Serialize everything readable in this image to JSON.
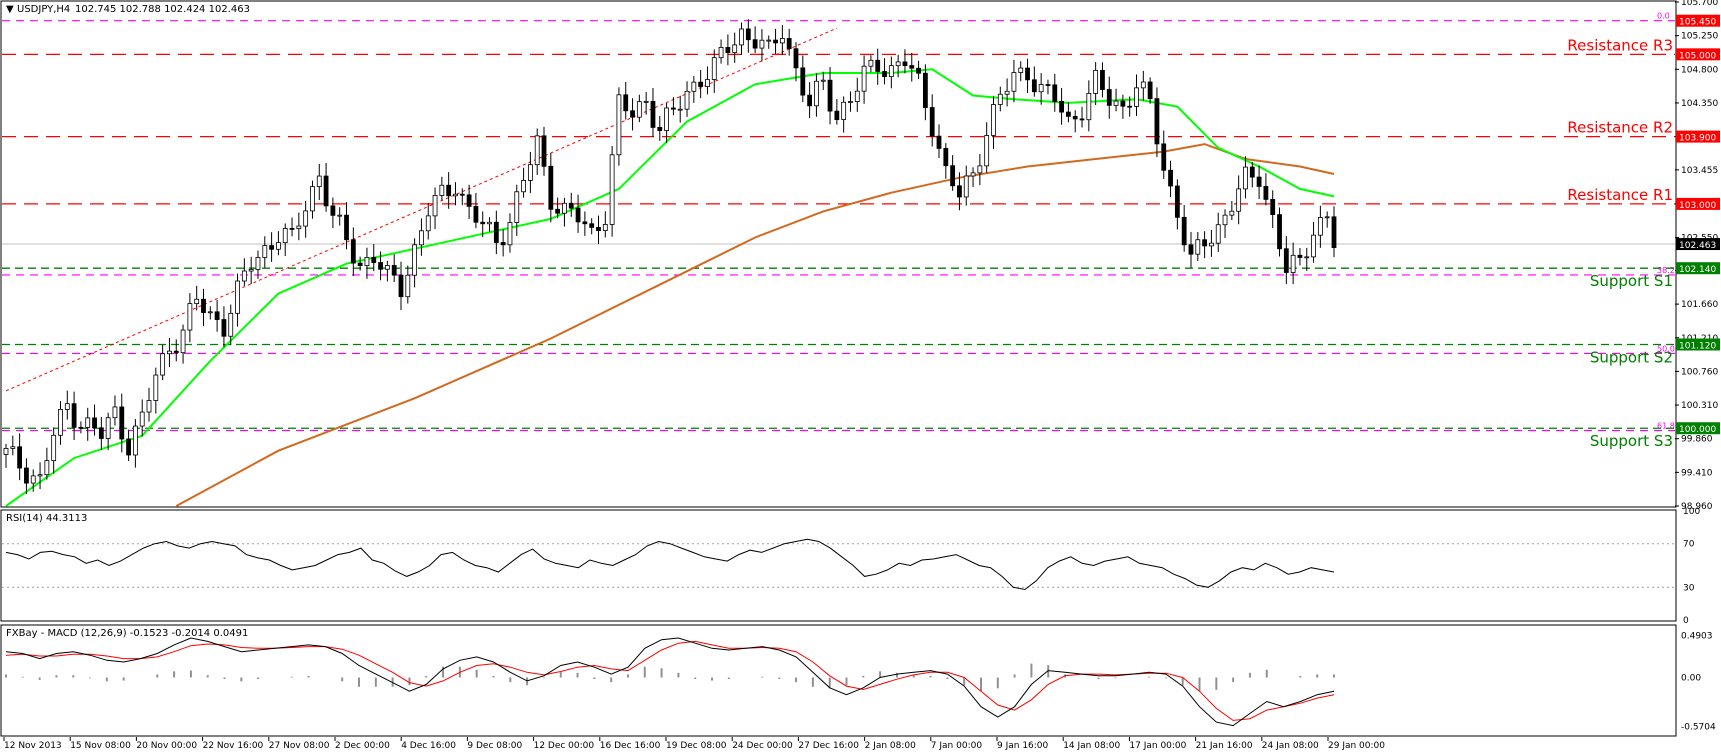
{
  "header": {
    "symbol_label": "USDJPY,H4",
    "ohlc": "102.745 102.788 102.424 102.463",
    "rsi_label": "RSI(14) 44.3113",
    "macd_label": "FXBay - MACD (12,26,9) -0.1523 -0.2014 0.0491"
  },
  "colors": {
    "resistance": "#ff0000",
    "support": "#008000",
    "fib": "#ff00ff",
    "ma_fast": "#00ff00",
    "ma_slow": "#d2691e",
    "trend": "#ff0000",
    "rsi": "#000000",
    "macd": "#000000",
    "signal": "#ff0000"
  },
  "chart_data": [
    {
      "type": "candlestick",
      "symbol": "USDJPY",
      "timeframe": "H4",
      "ylim": [
        98.96,
        105.7
      ],
      "y_ticks": [
        "105.700",
        "105.250",
        "104.800",
        "104.350",
        "103.900",
        "103.455",
        "103.000",
        "102.550",
        "102.110",
        "101.660",
        "101.210",
        "100.760",
        "100.310",
        "99.860",
        "99.410",
        "98.960"
      ],
      "x_labels": [
        "12 Nov 2013",
        "15 Nov 08:00",
        "20 Nov 00:00",
        "22 Nov 16:00",
        "27 Nov 08:00",
        "2 Dec 00:00",
        "4 Dec 16:00",
        "9 Dec 08:00",
        "12 Dec 00:00",
        "16 Dec 16:00",
        "19 Dec 08:00",
        "24 Dec 00:00",
        "27 Dec 16:00",
        "2 Jan 08:00",
        "7 Jan 00:00",
        "9 Jan 16:00",
        "14 Jan 08:00",
        "17 Jan 00:00",
        "21 Jan 16:00",
        "24 Jan 08:00",
        "29 Jan 00:00"
      ],
      "close_path": [
        [
          0,
          99.65
        ],
        [
          3,
          99.45
        ],
        [
          5,
          99.3
        ],
        [
          7,
          99.9
        ],
        [
          9,
          100.3
        ],
        [
          11,
          100.1
        ],
        [
          14,
          99.9
        ],
        [
          16,
          100.2
        ],
        [
          18,
          99.8
        ],
        [
          20,
          100.1
        ],
        [
          22,
          100.7
        ],
        [
          24,
          101.1
        ],
        [
          26,
          101.3
        ],
        [
          28,
          101.7
        ],
        [
          30,
          101.5
        ],
        [
          32,
          101.4
        ],
        [
          34,
          101.8
        ],
        [
          36,
          102.2
        ],
        [
          38,
          102.4
        ],
        [
          40,
          102.6
        ],
        [
          42,
          102.5
        ],
        [
          44,
          103.0
        ],
        [
          46,
          103.4
        ],
        [
          48,
          102.8
        ],
        [
          50,
          102.5
        ],
        [
          52,
          102.2
        ],
        [
          54,
          102.3
        ],
        [
          56,
          102.0
        ],
        [
          58,
          101.9
        ],
        [
          60,
          102.4
        ],
        [
          62,
          102.9
        ],
        [
          64,
          103.1
        ],
        [
          66,
          103.3
        ],
        [
          68,
          102.9
        ],
        [
          70,
          102.7
        ],
        [
          72,
          102.5
        ],
        [
          74,
          102.8
        ],
        [
          76,
          103.3
        ],
        [
          78,
          103.8
        ],
        [
          80,
          103.1
        ],
        [
          82,
          102.9
        ],
        [
          84,
          102.8
        ],
        [
          86,
          102.6
        ],
        [
          88,
          102.9
        ],
        [
          90,
          104.3
        ],
        [
          92,
          104.2
        ],
        [
          94,
          104.4
        ],
        [
          96,
          104.0
        ],
        [
          98,
          104.2
        ],
        [
          100,
          104.5
        ],
        [
          102,
          104.7
        ],
        [
          104,
          104.8
        ],
        [
          106,
          105.1
        ],
        [
          108,
          105.3
        ],
        [
          110,
          105.2
        ],
        [
          112,
          105.0
        ],
        [
          114,
          105.35
        ],
        [
          116,
          104.8
        ],
        [
          118,
          104.3
        ],
        [
          120,
          104.6
        ],
        [
          122,
          104.2
        ],
        [
          124,
          104.4
        ],
        [
          126,
          104.7
        ],
        [
          128,
          104.9
        ],
        [
          130,
          104.8
        ],
        [
          132,
          104.9
        ],
        [
          134,
          104.6
        ],
        [
          136,
          104.1
        ],
        [
          138,
          103.4
        ],
        [
          140,
          103.1
        ],
        [
          142,
          103.4
        ],
        [
          144,
          104.0
        ],
        [
          146,
          104.4
        ],
        [
          148,
          104.7
        ],
        [
          150,
          104.8
        ],
        [
          152,
          104.5
        ],
        [
          154,
          104.4
        ],
        [
          156,
          104.1
        ],
        [
          158,
          104.3
        ],
        [
          160,
          104.6
        ],
        [
          162,
          104.4
        ],
        [
          164,
          104.3
        ],
        [
          166,
          104.6
        ],
        [
          168,
          104.3
        ],
        [
          170,
          103.5
        ],
        [
          172,
          102.9
        ],
        [
          174,
          102.2
        ],
        [
          176,
          102.5
        ],
        [
          178,
          102.7
        ],
        [
          180,
          103.0
        ],
        [
          182,
          103.3
        ],
        [
          184,
          103.4
        ],
        [
          186,
          102.8
        ],
        [
          188,
          102.1
        ],
        [
          190,
          102.2
        ],
        [
          192,
          102.7
        ],
        [
          194,
          102.8
        ],
        [
          195,
          102.463
        ]
      ],
      "ma_fast_path": [
        [
          0,
          98.96
        ],
        [
          10,
          99.6
        ],
        [
          20,
          99.9
        ],
        [
          30,
          100.9
        ],
        [
          40,
          101.8
        ],
        [
          50,
          102.2
        ],
        [
          60,
          102.4
        ],
        [
          70,
          102.6
        ],
        [
          80,
          102.8
        ],
        [
          90,
          103.2
        ],
        [
          100,
          104.1
        ],
        [
          110,
          104.6
        ],
        [
          120,
          104.75
        ],
        [
          130,
          104.75
        ],
        [
          136,
          104.8
        ],
        [
          142,
          104.45
        ],
        [
          148,
          104.4
        ],
        [
          156,
          104.35
        ],
        [
          166,
          104.4
        ],
        [
          172,
          104.3
        ],
        [
          178,
          103.75
        ],
        [
          184,
          103.5
        ],
        [
          190,
          103.2
        ],
        [
          195,
          103.1
        ]
      ],
      "ma_slow_path": [
        [
          25,
          98.96
        ],
        [
          40,
          99.7
        ],
        [
          60,
          100.4
        ],
        [
          80,
          101.2
        ],
        [
          100,
          102.1
        ],
        [
          110,
          102.55
        ],
        [
          120,
          102.9
        ],
        [
          130,
          103.15
        ],
        [
          140,
          103.35
        ],
        [
          150,
          103.5
        ],
        [
          160,
          103.6
        ],
        [
          170,
          103.7
        ],
        [
          176,
          103.8
        ],
        [
          182,
          103.6
        ],
        [
          190,
          103.5
        ],
        [
          195,
          103.4
        ]
      ],
      "trend_line": [
        [
          0,
          100.5
        ],
        [
          122,
          105.35
        ]
      ],
      "levels": [
        {
          "name": "Resistance R3",
          "value": 105.0,
          "tag": "105.000"
        },
        {
          "name": "Resistance R2",
          "value": 103.9,
          "tag": "103.900"
        },
        {
          "name": "Resistance R1",
          "value": 103.0,
          "tag": "103.000"
        },
        {
          "name": "Support S1",
          "value": 102.14,
          "tag": "102.140"
        },
        {
          "name": "Support S2",
          "value": 101.12,
          "tag": "101.120"
        },
        {
          "name": "Support S3",
          "value": 100.0,
          "tag": "100.000"
        }
      ],
      "fib_levels": [
        {
          "label": "0.0",
          "value": 105.45,
          "tag": "105.450"
        },
        {
          "label": "38.2",
          "value": 102.05,
          "tag": ""
        },
        {
          "label": "50.0",
          "value": 101.0,
          "tag": ""
        },
        {
          "label": "61.8",
          "value": 99.97,
          "tag": ""
        }
      ],
      "last_price": "102.463"
    },
    {
      "type": "line",
      "name": "RSI(14)",
      "ylim": [
        0,
        100
      ],
      "y_ticks": [
        "100",
        "70",
        "30",
        "0"
      ],
      "values": [
        62,
        60,
        56,
        62,
        63,
        60,
        58,
        52,
        55,
        50,
        54,
        60,
        66,
        70,
        72,
        68,
        66,
        70,
        72,
        70,
        68,
        60,
        57,
        55,
        50,
        46,
        48,
        50,
        55,
        60,
        62,
        66,
        55,
        52,
        45,
        40,
        44,
        50,
        60,
        62,
        55,
        50,
        48,
        44,
        52,
        60,
        65,
        56,
        52,
        50,
        48,
        55,
        52,
        50,
        55,
        60,
        68,
        72,
        70,
        66,
        62,
        58,
        56,
        54,
        60,
        64,
        62,
        66,
        70,
        72,
        74,
        72,
        66,
        58,
        50,
        40,
        42,
        46,
        52,
        50,
        55,
        56,
        58,
        60,
        55,
        50,
        48,
        40,
        30,
        28,
        36,
        48,
        54,
        58,
        52,
        50,
        54,
        56,
        58,
        52,
        50,
        48,
        42,
        38,
        32,
        30,
        36,
        44,
        48,
        46,
        52,
        48,
        42,
        44,
        48,
        46,
        44
      ]
    },
    {
      "type": "line",
      "name": "MACD (12,26,9)",
      "ylim": [
        -0.67,
        0.6
      ],
      "y_ticks": [
        "0.4903",
        "0.00",
        "-0.5704"
      ],
      "macd": [
        0.3,
        0.28,
        0.22,
        0.28,
        0.3,
        0.26,
        0.2,
        0.18,
        0.22,
        0.28,
        0.38,
        0.46,
        0.42,
        0.36,
        0.3,
        0.32,
        0.34,
        0.36,
        0.38,
        0.36,
        0.28,
        0.14,
        0.04,
        -0.06,
        -0.16,
        -0.08,
        0.1,
        0.2,
        0.24,
        0.18,
        0.06,
        -0.04,
        0.02,
        0.14,
        0.18,
        0.12,
        0.04,
        0.12,
        0.34,
        0.44,
        0.46,
        0.4,
        0.34,
        0.32,
        0.34,
        0.36,
        0.32,
        0.24,
        0.06,
        -0.12,
        -0.2,
        -0.12,
        0.0,
        0.04,
        0.06,
        0.08,
        0.04,
        -0.1,
        -0.34,
        -0.46,
        -0.34,
        -0.08,
        0.08,
        0.06,
        0.04,
        0.02,
        0.02,
        0.04,
        0.06,
        0.04,
        -0.1,
        -0.34,
        -0.52,
        -0.56,
        -0.42,
        -0.28,
        -0.34,
        -0.28,
        -0.2,
        -0.16
      ],
      "signal": [
        0.26,
        0.27,
        0.25,
        0.25,
        0.27,
        0.27,
        0.25,
        0.22,
        0.22,
        0.24,
        0.3,
        0.37,
        0.39,
        0.38,
        0.35,
        0.34,
        0.34,
        0.35,
        0.36,
        0.36,
        0.33,
        0.26,
        0.16,
        0.06,
        -0.06,
        -0.1,
        -0.04,
        0.06,
        0.14,
        0.16,
        0.12,
        0.06,
        0.03,
        0.07,
        0.12,
        0.14,
        0.1,
        0.08,
        0.2,
        0.32,
        0.4,
        0.42,
        0.38,
        0.34,
        0.34,
        0.35,
        0.34,
        0.3,
        0.18,
        0.02,
        -0.1,
        -0.14,
        -0.08,
        -0.02,
        0.03,
        0.06,
        0.06,
        0.0,
        -0.16,
        -0.32,
        -0.38,
        -0.26,
        -0.08,
        0.02,
        0.04,
        0.04,
        0.03,
        0.04,
        0.05,
        0.05,
        0.0,
        -0.16,
        -0.36,
        -0.5,
        -0.48,
        -0.38,
        -0.34,
        -0.3,
        -0.24,
        -0.2
      ]
    }
  ]
}
